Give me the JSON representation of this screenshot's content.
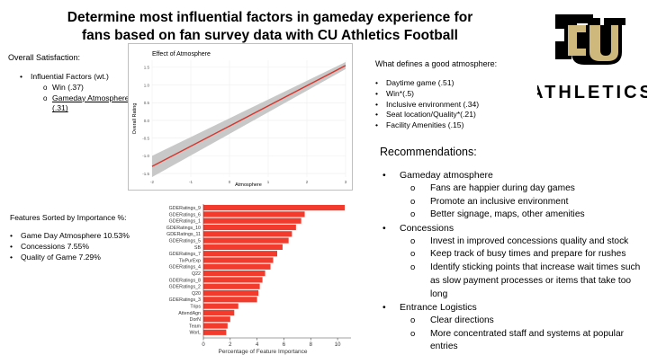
{
  "title": "Determine most influential factors in gameday experience for fans based on fan survey data with CU Athletics Football",
  "logo": {
    "letters": "CU",
    "wordmark": "ATHLETICS",
    "color": "#CFB87C"
  },
  "overall": {
    "heading": "Overall Satisfaction:",
    "item": "Influential Factors (wt.)",
    "sub": [
      "Win (.37)",
      "Gameday Atmosphere (.31)"
    ]
  },
  "atmos_chart": {
    "chart_data": {
      "type": "line",
      "title": "Effect of Atmosphere",
      "xlabel": "Atmosphere",
      "ylabel": "Overall Rating",
      "xlim": [
        -2,
        3
      ],
      "ylim": [
        -1.6,
        1.7
      ],
      "xticks": [
        "-2",
        "-1",
        "0",
        "1",
        "2",
        "3"
      ],
      "yticks": [
        "1.5",
        "1.0",
        "0.5",
        "0.0",
        "-0.5",
        "-1.0",
        "-1.5"
      ],
      "line": {
        "x": [
          -2,
          3
        ],
        "y": [
          -1.3,
          1.55
        ]
      },
      "band": {
        "lower": [
          -1.6,
          1.45
        ],
        "upper": [
          -1.0,
          1.65
        ]
      },
      "line_color": "#d9342b",
      "band_color": "#c8c8c8"
    }
  },
  "good_atmos": {
    "heading": "What defines a good atmosphere:",
    "items": [
      "Daytime game (.51)",
      "Win*(.5)",
      "Inclusive environment (.34)",
      "Seat location/Quality*(.21)",
      "Facility Amenities (.15)"
    ]
  },
  "features": {
    "heading": "Features Sorted by Importance %:",
    "items": [
      "Game Day Atmosphere 10.53%",
      "Concessions 7.55%",
      "Quality of Game 7.29%"
    ]
  },
  "importance_chart": {
    "chart_data": {
      "type": "bar",
      "orientation": "horizontal",
      "xlabel": "Percentage of Feature Importance",
      "xlim": [
        0,
        11
      ],
      "xticks": [
        0,
        2,
        4,
        6,
        8,
        10
      ],
      "bar_color": "#f23b2d",
      "labels": [
        "GDERatings_9",
        "GDERatings_6",
        "GDERatings_1",
        "GDERatings_10",
        "GDERatings_11",
        "GDERatings_5",
        "SB",
        "GDERatings_7",
        "TixPurExp",
        "GDERatings_4",
        "Q22",
        "GDERatings_8",
        "GDERatings_2",
        "Q20",
        "GDERatings_3",
        "Trips",
        "AttendAgn",
        "DorN",
        "Team",
        "WorL"
      ],
      "values": [
        10.53,
        7.55,
        7.29,
        6.9,
        6.6,
        6.35,
        5.9,
        5.5,
        5.2,
        5.0,
        4.6,
        4.4,
        4.2,
        4.1,
        4.0,
        2.6,
        2.3,
        2.0,
        1.8,
        1.7
      ]
    }
  },
  "recommendations": {
    "heading": "Recommendations:",
    "groups": [
      {
        "label": "Gameday atmosphere",
        "items": [
          "Fans are happier during day games",
          "Promote an inclusive environment",
          "Better signage, maps, other amenities"
        ]
      },
      {
        "label": "Concessions",
        "items": [
          "Invest in improved concessions quality and stock",
          "Keep track of busy times and prepare for rushes",
          "Identify sticking points that increase wait times such as slow payment processes or items that take too long"
        ]
      },
      {
        "label": "Entrance Logistics",
        "items": [
          "Clear directions",
          "More concentrated staff and systems at popular entries"
        ]
      }
    ]
  }
}
